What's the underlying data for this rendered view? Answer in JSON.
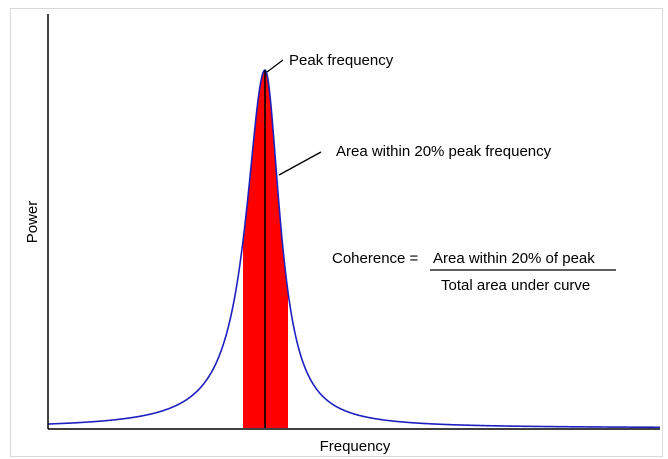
{
  "chart_data": {
    "type": "line",
    "xlabel": "Frequency",
    "ylabel": "Power",
    "grid": false,
    "legend": "none",
    "annotations": {
      "peak": "Peak frequency",
      "area": "Area within 20% peak frequency"
    },
    "formula": {
      "lhs": "Coherence =",
      "numerator": "Area within 20% of peak",
      "denominator": "Total area under curve"
    }
  },
  "colors": {
    "curve": "#1f1fbf",
    "shaded_area": "#ff0000",
    "frame": "#000000",
    "text": "#000000"
  }
}
